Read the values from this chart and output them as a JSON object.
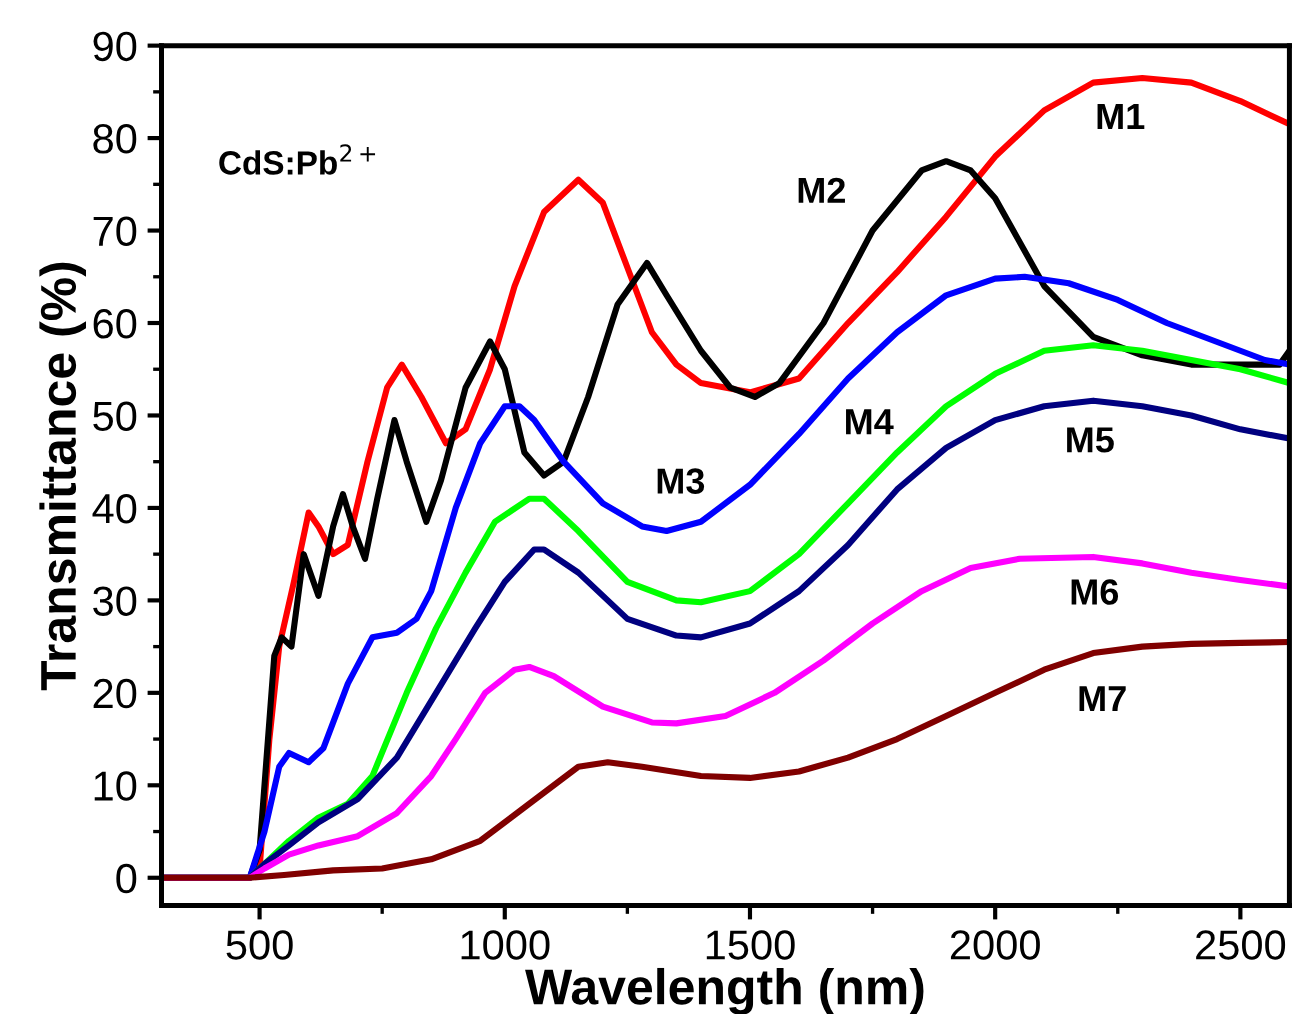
{
  "chart_data": {
    "type": "line",
    "xlabel": "Wavelength (nm)",
    "ylabel": "Transmittance (%)",
    "xlim": [
      300,
      2600
    ],
    "ylim": [
      -3,
      90
    ],
    "xticks": [
      500,
      1000,
      1500,
      2000,
      2500
    ],
    "yticks": [
      0,
      10,
      20,
      30,
      40,
      50,
      60,
      70,
      80,
      90
    ],
    "grid": false,
    "marker": "none",
    "line_style": "solid",
    "annotations": [
      "CdS:Pb$^{2+}$"
    ],
    "series": [
      {
        "name": "M1",
        "color": "#ff0000",
        "x": [
          300,
          480,
          500,
          520,
          540,
          570,
          600,
          620,
          650,
          680,
          720,
          760,
          790,
          830,
          880,
          920,
          970,
          1020,
          1080,
          1150,
          1200,
          1250,
          1300,
          1350,
          1400,
          1500,
          1600,
          1700,
          1800,
          1900,
          2000,
          2100,
          2200,
          2300,
          2400,
          2500,
          2560,
          2600
        ],
        "values": [
          0,
          0,
          1,
          15,
          25,
          32,
          39.5,
          38,
          35,
          36,
          45,
          53,
          55.5,
          52,
          47,
          48.5,
          55,
          64,
          72,
          75.5,
          73,
          66,
          59,
          55.5,
          53.5,
          52.5,
          54,
          60,
          65.5,
          71.5,
          78,
          83,
          86,
          86.5,
          86,
          84,
          82.5,
          81.5
        ]
      },
      {
        "name": "M2",
        "color": "#000000",
        "x": [
          300,
          480,
          500,
          530,
          545,
          565,
          590,
          620,
          650,
          670,
          690,
          715,
          740,
          775,
          800,
          840,
          870,
          920,
          970,
          1000,
          1040,
          1080,
          1120,
          1170,
          1230,
          1290,
          1330,
          1400,
          1460,
          1510,
          1560,
          1650,
          1750,
          1850,
          1900,
          1950,
          2000,
          2100,
          2200,
          2300,
          2400,
          2500,
          2580,
          2600
        ],
        "values": [
          0,
          0,
          3,
          24,
          26,
          25,
          35,
          30.5,
          38,
          41.5,
          38,
          34.5,
          41,
          49.5,
          45,
          38.5,
          43,
          53,
          58,
          55,
          46,
          43.5,
          45,
          52,
          62,
          66.5,
          63,
          57,
          53,
          52,
          53.5,
          60,
          70,
          76.5,
          77.5,
          76.5,
          73.5,
          64,
          58.5,
          56.5,
          55.5,
          55.5,
          55.5,
          57
        ]
      },
      {
        "name": "M3",
        "color": "#0000ff",
        "x": [
          300,
          480,
          510,
          540,
          560,
          600,
          630,
          680,
          730,
          780,
          820,
          850,
          900,
          950,
          1000,
          1030,
          1060,
          1120,
          1200,
          1280,
          1330,
          1400,
          1500,
          1600,
          1700,
          1800,
          1900,
          2000,
          2060,
          2150,
          2250,
          2350,
          2450,
          2550,
          2600
        ],
        "values": [
          0,
          0,
          5,
          12,
          13.5,
          12.5,
          14,
          21,
          26,
          26.5,
          28,
          31,
          40,
          47,
          51,
          51,
          49.5,
          45,
          40.5,
          38,
          37.5,
          38.5,
          42.5,
          48,
          54,
          59,
          63,
          64.8,
          65,
          64.3,
          62.5,
          60,
          58,
          56,
          55.5
        ]
      },
      {
        "name": "M4",
        "color": "#00ff00",
        "x": [
          300,
          480,
          510,
          560,
          620,
          680,
          730,
          800,
          860,
          920,
          980,
          1050,
          1080,
          1150,
          1250,
          1350,
          1400,
          1500,
          1600,
          1700,
          1800,
          1900,
          2000,
          2100,
          2200,
          2300,
          2400,
          2500,
          2600
        ],
        "values": [
          0,
          0,
          1.5,
          4,
          6.5,
          8,
          11,
          20,
          27,
          33,
          38.5,
          41,
          41,
          37.5,
          32,
          30,
          29.8,
          31,
          35,
          40.5,
          46,
          51,
          54.5,
          57,
          57.6,
          57,
          56,
          55,
          53.5
        ]
      },
      {
        "name": "M5",
        "color": "#000080",
        "x": [
          300,
          480,
          510,
          560,
          620,
          700,
          780,
          860,
          940,
          1000,
          1060,
          1080,
          1150,
          1250,
          1350,
          1400,
          1500,
          1600,
          1700,
          1800,
          1900,
          2000,
          2100,
          2200,
          2300,
          2400,
          2500,
          2600
        ],
        "values": [
          0,
          0,
          1.5,
          3.5,
          6,
          8.5,
          13,
          20,
          27,
          32,
          35.5,
          35.5,
          33,
          28,
          26.2,
          26,
          27.5,
          31,
          36,
          42,
          46.5,
          49.5,
          51,
          51.6,
          51,
          50,
          48.5,
          47.5
        ]
      },
      {
        "name": "M6",
        "color": "#ff00ff",
        "x": [
          300,
          480,
          510,
          560,
          620,
          700,
          780,
          850,
          900,
          960,
          1020,
          1050,
          1100,
          1200,
          1300,
          1350,
          1450,
          1550,
          1650,
          1750,
          1850,
          1950,
          2050,
          2200,
          2300,
          2400,
          2500,
          2600
        ],
        "values": [
          0,
          0,
          1,
          2.5,
          3.5,
          4.5,
          7,
          11,
          15,
          20,
          22.5,
          22.8,
          21.8,
          18.5,
          16.8,
          16.7,
          17.5,
          20,
          23.5,
          27.5,
          31,
          33.5,
          34.5,
          34.7,
          34,
          33,
          32.2,
          31.5
        ]
      },
      {
        "name": "M7",
        "color": "#800000",
        "x": [
          300,
          480,
          550,
          650,
          750,
          850,
          950,
          1050,
          1150,
          1210,
          1280,
          1400,
          1500,
          1600,
          1700,
          1800,
          1900,
          2000,
          2100,
          2200,
          2300,
          2400,
          2500,
          2600
        ],
        "values": [
          0,
          0,
          0.3,
          0.8,
          1,
          2,
          4,
          8,
          12,
          12.5,
          12,
          11,
          10.8,
          11.5,
          13,
          15,
          17.5,
          20,
          22.5,
          24.3,
          25,
          25.3,
          25.4,
          25.5
        ]
      }
    ]
  }
}
